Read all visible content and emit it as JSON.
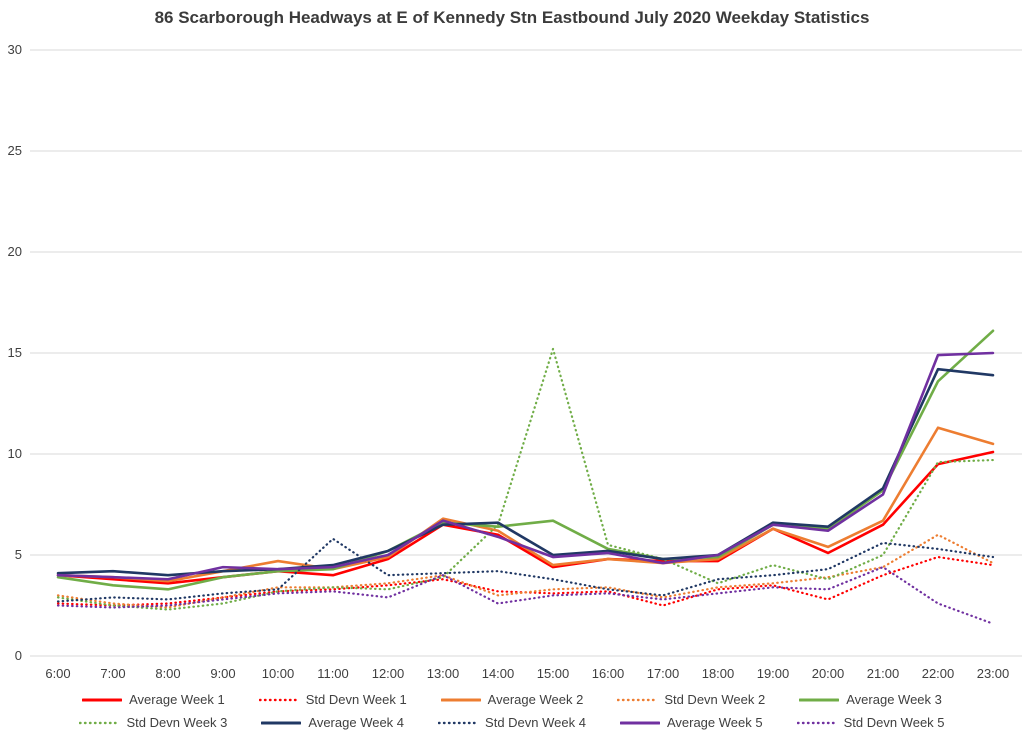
{
  "chart_data": {
    "type": "line",
    "title": "86 Scarborough Headways at E of Kennedy Stn Eastbound July 2020 Weekday Statistics",
    "x": [
      "6:00",
      "7:00",
      "8:00",
      "9:00",
      "10:00",
      "11:00",
      "12:00",
      "13:00",
      "14:00",
      "15:00",
      "16:00",
      "17:00",
      "18:00",
      "19:00",
      "20:00",
      "21:00",
      "22:00",
      "23:00"
    ],
    "ylim": [
      0,
      30
    ],
    "ytick_step": 5,
    "grid": true,
    "grid_color": "#d9d9d9",
    "axis_label_color": "#404040",
    "legend_position": "bottom",
    "series": [
      {
        "name": "Average Week 1",
        "color": "#ff0000",
        "style": "solid",
        "values": [
          4.0,
          3.8,
          3.6,
          3.9,
          4.2,
          4.0,
          4.8,
          6.5,
          6.0,
          4.4,
          4.8,
          4.7,
          4.7,
          6.3,
          5.1,
          6.5,
          9.5,
          10.1
        ]
      },
      {
        "name": "Std Devn Week 1",
        "color": "#ff0000",
        "style": "dotted",
        "values": [
          2.6,
          2.5,
          2.6,
          2.9,
          3.2,
          3.3,
          3.5,
          3.8,
          3.2,
          3.1,
          3.2,
          2.5,
          3.3,
          3.5,
          2.8,
          4.0,
          4.9,
          4.5
        ]
      },
      {
        "name": "Average Week 2",
        "color": "#ed7d31",
        "style": "solid",
        "values": [
          4.0,
          3.9,
          3.7,
          4.2,
          4.7,
          4.3,
          4.9,
          6.8,
          6.2,
          4.5,
          4.8,
          4.6,
          4.8,
          6.3,
          5.4,
          6.7,
          11.3,
          10.5
        ]
      },
      {
        "name": "Std Devn Week 2",
        "color": "#ed7d31",
        "style": "dotted",
        "values": [
          3.0,
          2.6,
          2.4,
          2.9,
          3.4,
          3.4,
          3.6,
          4.0,
          3.0,
          3.3,
          3.4,
          2.9,
          3.4,
          3.6,
          3.9,
          4.4,
          6.0,
          4.6
        ]
      },
      {
        "name": "Average Week 3",
        "color": "#70ad47",
        "style": "solid",
        "values": [
          3.9,
          3.5,
          3.3,
          3.9,
          4.2,
          4.3,
          5.2,
          6.6,
          6.4,
          6.7,
          5.3,
          4.8,
          4.9,
          6.5,
          6.3,
          8.2,
          13.6,
          16.1
        ]
      },
      {
        "name": "Std Devn Week 3",
        "color": "#70ad47",
        "style": "dotted",
        "values": [
          2.9,
          2.5,
          2.3,
          2.6,
          3.2,
          3.4,
          3.3,
          3.9,
          6.5,
          15.2,
          5.5,
          4.8,
          3.6,
          4.5,
          3.8,
          5.0,
          9.6,
          9.7
        ]
      },
      {
        "name": "Average Week 4",
        "color": "#203864",
        "style": "solid",
        "values": [
          4.1,
          4.2,
          4.0,
          4.2,
          4.3,
          4.5,
          5.2,
          6.5,
          6.6,
          5.0,
          5.2,
          4.8,
          5.0,
          6.6,
          6.4,
          8.3,
          14.2,
          13.9
        ]
      },
      {
        "name": "Std Devn Week 4",
        "color": "#203864",
        "style": "dotted",
        "values": [
          2.7,
          2.9,
          2.8,
          3.1,
          3.3,
          5.8,
          4.0,
          4.1,
          4.2,
          3.8,
          3.3,
          3.0,
          3.8,
          4.0,
          4.3,
          5.6,
          5.3,
          4.9
        ]
      },
      {
        "name": "Average Week 5",
        "color": "#7030a0",
        "style": "solid",
        "values": [
          4.0,
          3.9,
          3.8,
          4.4,
          4.3,
          4.4,
          5.0,
          6.7,
          5.9,
          4.9,
          5.1,
          4.6,
          5.0,
          6.5,
          6.2,
          8.0,
          14.9,
          15.0
        ]
      },
      {
        "name": "Std Devn Week 5",
        "color": "#7030a0",
        "style": "dotted",
        "values": [
          2.5,
          2.4,
          2.5,
          2.8,
          3.1,
          3.2,
          2.9,
          4.0,
          2.6,
          3.0,
          3.1,
          2.8,
          3.1,
          3.4,
          3.3,
          4.4,
          2.6,
          1.6
        ]
      }
    ],
    "legend_rows": [
      5,
      5
    ]
  }
}
